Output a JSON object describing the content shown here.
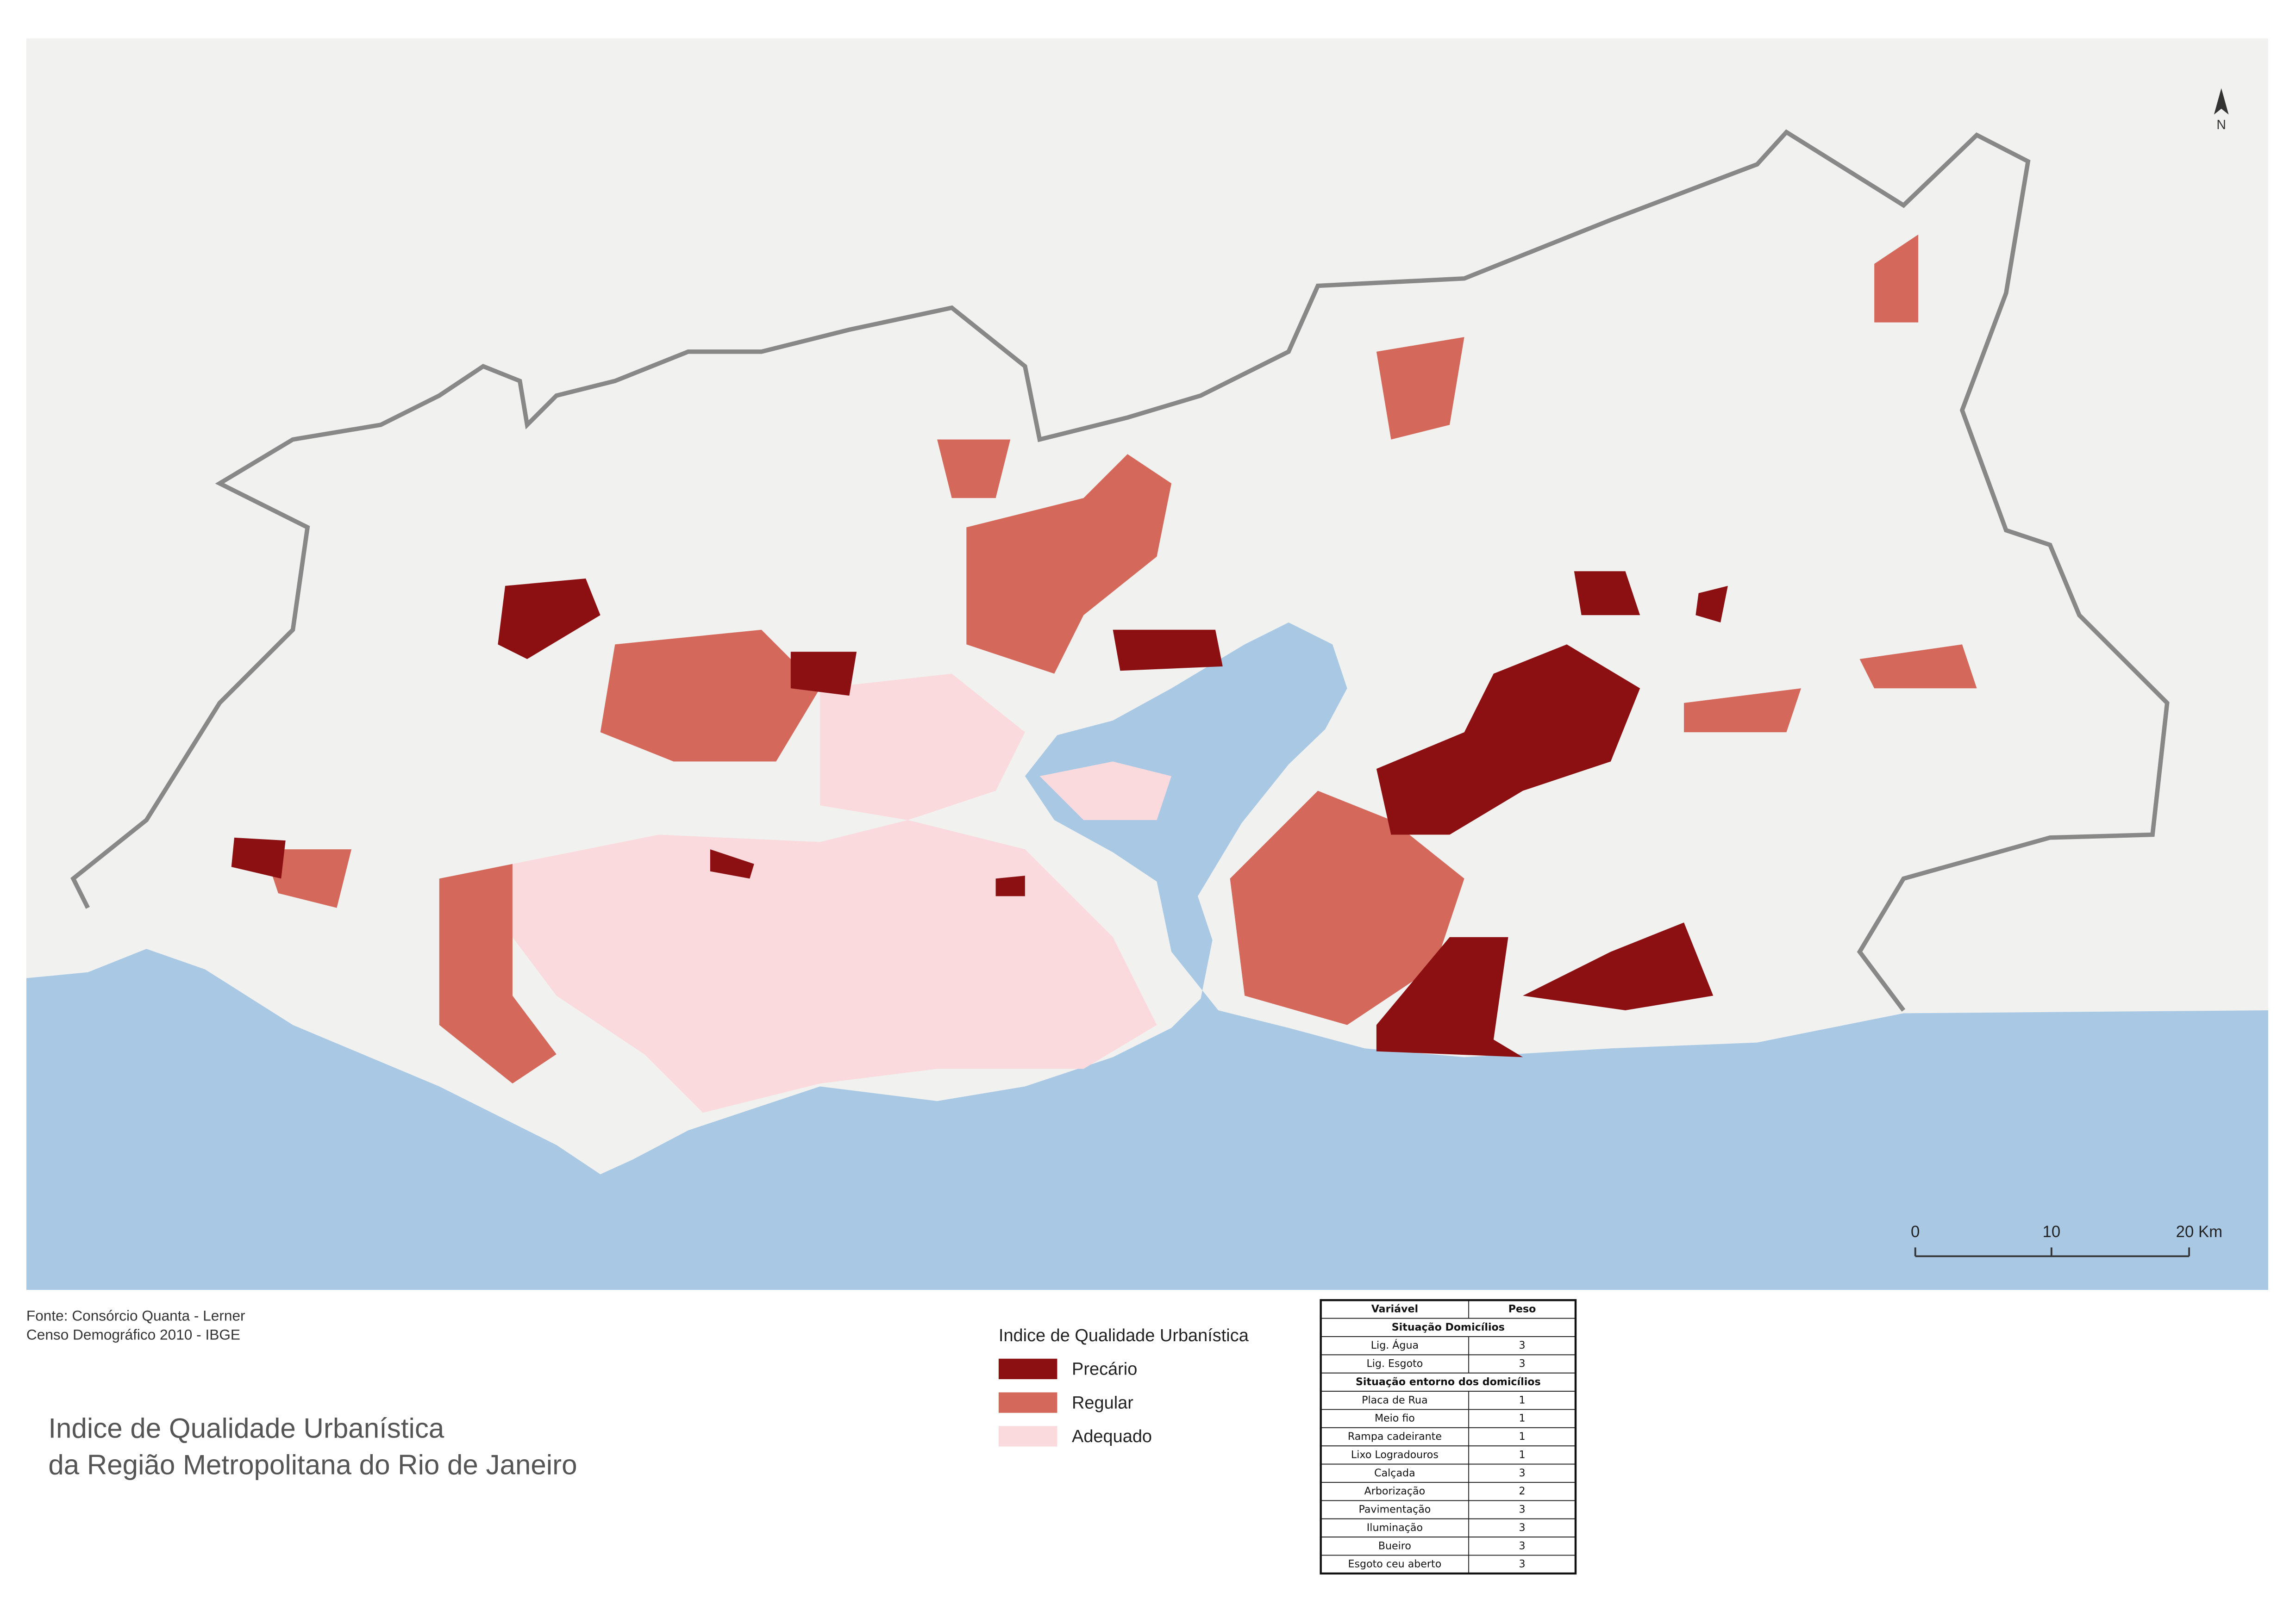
{
  "north_label": "N",
  "scale_labels": [
    "0",
    "10",
    "20 Km"
  ],
  "source": [
    "Fonte:  Consórcio Quanta - Lerner",
    "Censo Demográfico 2010 - IBGE"
  ],
  "title": [
    "Indice de Qualidade Urbanística",
    "da Região Metropolitana do Rio de Janeiro"
  ],
  "legend": {
    "title": "Indice de Qualidade Urbanística",
    "items": [
      {
        "label": "Precário",
        "color": "#8c0f12"
      },
      {
        "label": "Regular",
        "color": "#d4695b"
      },
      {
        "label": "Adequado",
        "color": "#fadadd"
      }
    ]
  },
  "table": {
    "header": [
      "Variável",
      "Peso"
    ],
    "sections": [
      {
        "title": "Situação Domicílios",
        "rows": [
          [
            "Lig. Água",
            "3"
          ],
          [
            "Lig. Esgoto",
            "3"
          ]
        ]
      },
      {
        "title": "Situação entorno dos domicílios",
        "rows": [
          [
            "Placa de Rua",
            "1"
          ],
          [
            "Meio fio",
            "1"
          ],
          [
            "Rampa cadeirante",
            "1"
          ],
          [
            "Lixo Logradouros",
            "1"
          ],
          [
            "Calçada",
            "3"
          ],
          [
            "Arborização",
            "2"
          ],
          [
            "Pavimentação",
            "3"
          ],
          [
            "Iluminação",
            "3"
          ],
          [
            "Bueiro",
            "3"
          ],
          [
            "Esgoto ceu aberto",
            "3"
          ]
        ]
      }
    ]
  }
}
